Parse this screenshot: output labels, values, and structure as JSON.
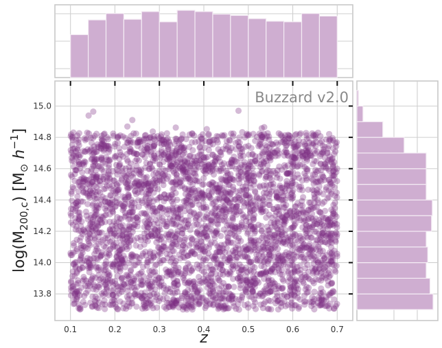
{
  "chart_data": {
    "type": "scatter",
    "title": "",
    "annotation": "Buzzard v2.0",
    "xlabel": "z",
    "ylabel_main": "log(M",
    "ylabel_sub": "200,c",
    "ylabel_rest": ") [M",
    "ylabel_sun": "⊙",
    "ylabel_h": " h",
    "ylabel_sup": "−1",
    "ylabel_close": "]",
    "xlim": [
      0.065,
      0.735
    ],
    "ylim": [
      13.63,
      15.16
    ],
    "x_ticks": [
      0.1,
      0.2,
      0.3,
      0.4,
      0.5,
      0.6,
      0.7
    ],
    "x_tick_labels": [
      "0.1",
      "0.2",
      "0.3",
      "0.4",
      "0.5",
      "0.6",
      "0.7"
    ],
    "y_ticks": [
      13.8,
      14.0,
      14.2,
      14.4,
      14.6,
      14.8,
      15.0
    ],
    "y_tick_labels": [
      "13.8",
      "14.0",
      "14.2",
      "14.4",
      "14.6",
      "14.8",
      "15.0"
    ],
    "grid": true,
    "point_color": "#7b2d84",
    "hist_color": "#cfaed1",
    "hist_edge_color": "#f4ecf4",
    "n_points": 3500,
    "x_range": [
      0.1,
      0.7
    ],
    "y_range": [
      13.7,
      15.1
    ],
    "top_hist": {
      "bin_edges": [
        0.1,
        0.14,
        0.18,
        0.22,
        0.26,
        0.3,
        0.34,
        0.38,
        0.42,
        0.46,
        0.5,
        0.54,
        0.58,
        0.62,
        0.66,
        0.7
      ],
      "relative_heights": [
        0.67,
        0.9,
        1.0,
        0.91,
        1.03,
        0.87,
        1.05,
        1.03,
        0.99,
        0.97,
        0.92,
        0.88,
        0.87,
        1.0,
        0.96
      ]
    },
    "right_hist": {
      "bin_edges": [
        13.7,
        13.8,
        13.9,
        14.0,
        14.1,
        14.2,
        14.3,
        14.4,
        14.5,
        14.6,
        14.7,
        14.8,
        14.9,
        15.0,
        15.1
      ],
      "relative_widths": [
        1.0,
        0.96,
        0.91,
        0.93,
        0.91,
        0.98,
        0.99,
        0.91,
        0.91,
        0.91,
        0.62,
        0.34,
        0.08,
        0.02
      ]
    }
  }
}
